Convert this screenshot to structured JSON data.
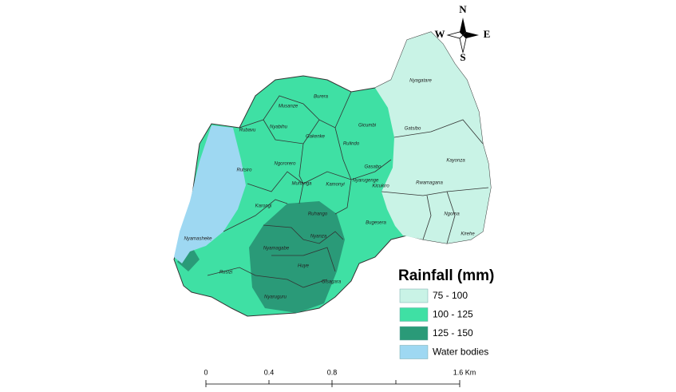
{
  "compass": {
    "north": "N",
    "south": "S",
    "west": "W",
    "east": "E"
  },
  "districts": [
    "Nyagatare",
    "Gatsibo",
    "Kayonza",
    "Gasabo",
    "Rwamagana",
    "Nyarugenge",
    "Kicukiro",
    "Ngoma",
    "Kirehe",
    "Bugesera",
    "Burera",
    "Musanze",
    "Nyabihu",
    "Rubavu",
    "Gakenke",
    "Gicumbi",
    "Rulindo",
    "Ngororero",
    "Rutsiro",
    "Muhanga",
    "Kamonyi",
    "Karongi",
    "Ruhango",
    "Nyanza",
    "Nyamasheke",
    "Nyamagabe",
    "Huye",
    "Rusizi",
    "Gisagara",
    "Nyaruguru"
  ],
  "legend": {
    "title": "Rainfall (mm)",
    "items": [
      {
        "label": "75 - 100",
        "color": "#c9f3e6"
      },
      {
        "label": "100 - 125",
        "color": "#3fe0a4"
      },
      {
        "label": "125 - 150",
        "color": "#2a9a78"
      },
      {
        "label": "Water bodies",
        "color": "#9ed8f2"
      }
    ]
  },
  "scale_bar": {
    "labels": [
      "0",
      "0.4",
      "0.8",
      "1.6 Km"
    ]
  }
}
